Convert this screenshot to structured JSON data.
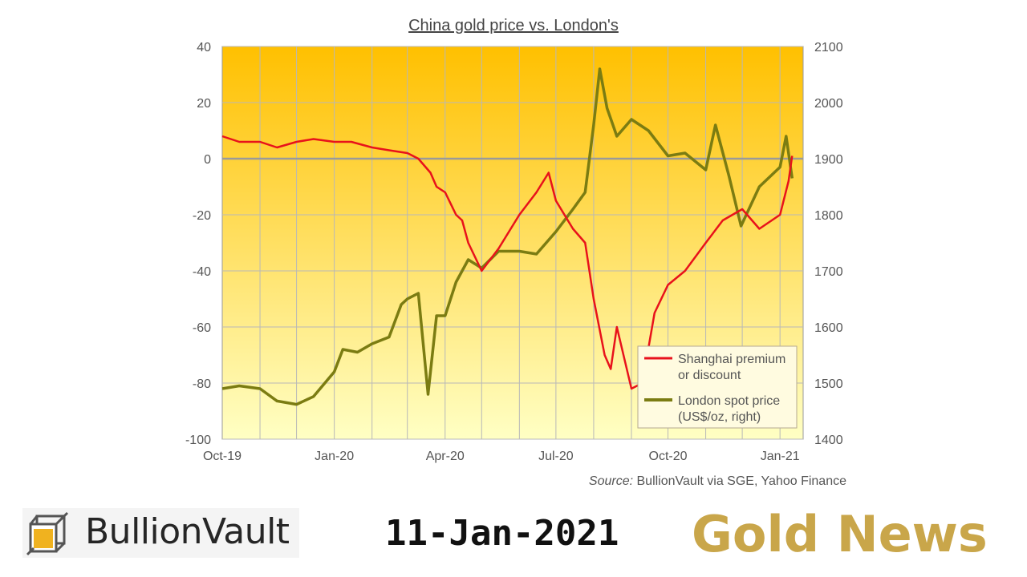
{
  "colors": {
    "premium_line": "#e8121b",
    "spot_line": "#7b7c12",
    "zero_line": "#9a9a9a",
    "brand_gold": "#c9a64a",
    "bg_top": "#ffc000",
    "bg_bottom": "#ffffc4"
  },
  "chart_data": {
    "type": "line",
    "title": "China gold price vs. London's",
    "x_tick_labels": [
      "Oct-19",
      "Jan-20",
      "Apr-20",
      "Jul-20",
      "Oct-20",
      "Jan-21"
    ],
    "x_range": [
      "2019-10-01",
      "2021-01-20"
    ],
    "y_left": {
      "range": [
        -100,
        40
      ],
      "ticks": [
        40,
        20,
        0,
        -20,
        -40,
        -60,
        -80,
        -100
      ]
    },
    "y_right": {
      "range": [
        1400,
        2100
      ],
      "ticks": [
        2100,
        2000,
        1900,
        1800,
        1700,
        1600,
        1500,
        1400
      ]
    },
    "grid": true,
    "legend_position": "bottom-right",
    "source": {
      "label": "Source:",
      "text": "BullionVault via SGE, Yahoo Finance"
    },
    "series": [
      {
        "name": "Shanghai premium or discount",
        "legend_lines": [
          "Shanghai premium",
          "or discount"
        ],
        "axis": "left",
        "x": [
          "2019-10-01",
          "2019-10-15",
          "2019-11-01",
          "2019-11-15",
          "2019-12-01",
          "2019-12-15",
          "2020-01-01",
          "2020-01-15",
          "2020-02-01",
          "2020-02-15",
          "2020-03-01",
          "2020-03-10",
          "2020-03-20",
          "2020-03-25",
          "2020-04-01",
          "2020-04-10",
          "2020-04-15",
          "2020-04-20",
          "2020-05-01",
          "2020-05-15",
          "2020-06-01",
          "2020-06-15",
          "2020-06-25",
          "2020-07-01",
          "2020-07-15",
          "2020-07-25",
          "2020-08-01",
          "2020-08-10",
          "2020-08-15",
          "2020-08-20",
          "2020-09-01",
          "2020-09-10",
          "2020-09-20",
          "2020-10-01",
          "2020-10-15",
          "2020-11-01",
          "2020-11-15",
          "2020-12-01",
          "2020-12-15",
          "2021-01-01",
          "2021-01-08",
          "2021-01-11"
        ],
        "y": [
          8,
          6,
          6,
          4,
          6,
          7,
          6,
          6,
          4,
          3,
          2,
          0,
          -5,
          -10,
          -12,
          -20,
          -22,
          -30,
          -40,
          -32,
          -20,
          -12,
          -5,
          -15,
          -25,
          -30,
          -50,
          -70,
          -75,
          -60,
          -82,
          -80,
          -55,
          -45,
          -40,
          -30,
          -22,
          -18,
          -25,
          -20,
          -8,
          1
        ]
      },
      {
        "name": "London spot price",
        "legend_lines": [
          "London spot price",
          "(US$/oz, right)"
        ],
        "axis": "right",
        "x": [
          "2019-10-01",
          "2019-10-15",
          "2019-11-01",
          "2019-11-15",
          "2019-12-01",
          "2019-12-15",
          "2020-01-01",
          "2020-01-08",
          "2020-01-20",
          "2020-02-01",
          "2020-02-15",
          "2020-02-25",
          "2020-03-01",
          "2020-03-10",
          "2020-03-18",
          "2020-03-25",
          "2020-04-01",
          "2020-04-10",
          "2020-04-20",
          "2020-05-01",
          "2020-05-15",
          "2020-06-01",
          "2020-06-15",
          "2020-07-01",
          "2020-07-15",
          "2020-07-25",
          "2020-08-01",
          "2020-08-06",
          "2020-08-12",
          "2020-08-20",
          "2020-09-01",
          "2020-09-15",
          "2020-10-01",
          "2020-10-15",
          "2020-11-01",
          "2020-11-09",
          "2020-11-20",
          "2020-11-30",
          "2020-12-15",
          "2021-01-01",
          "2021-01-06",
          "2021-01-11"
        ],
        "y": [
          1490,
          1495,
          1490,
          1468,
          1462,
          1476,
          1520,
          1560,
          1555,
          1570,
          1582,
          1640,
          1650,
          1660,
          1480,
          1620,
          1620,
          1680,
          1720,
          1705,
          1735,
          1735,
          1730,
          1770,
          1810,
          1840,
          1960,
          2060,
          1990,
          1940,
          1970,
          1950,
          1905,
          1910,
          1880,
          1960,
          1870,
          1780,
          1850,
          1885,
          1940,
          1865
        ]
      }
    ]
  },
  "footer": {
    "logo_text": "BullionVault",
    "date": "11-Jan-2021",
    "brand_text": "Gold News"
  }
}
